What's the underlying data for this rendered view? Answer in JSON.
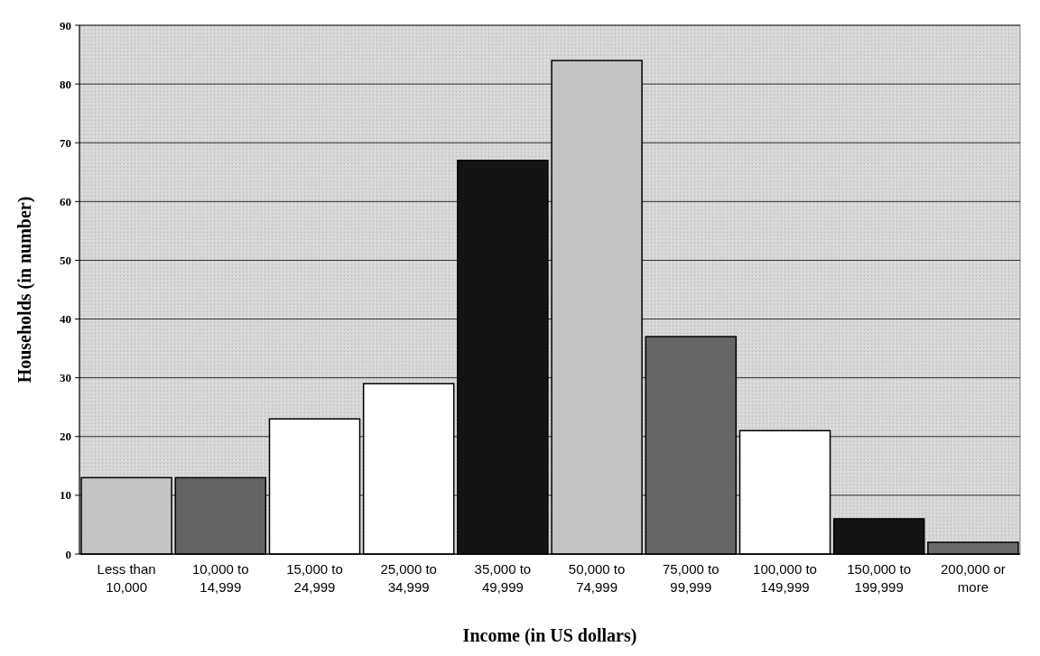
{
  "chart_data": {
    "type": "bar",
    "xlabel": "Income (in US dollars)",
    "ylabel": "Households (in number)",
    "categories": [
      "Less than 10,000",
      "10,000 to 14,999",
      "15,000 to 24,999",
      "25,000 to 34,999",
      "35,000 to 49,999",
      "50,000 to 74,999",
      "75,000 to 99,999",
      "100,000 to 149,999",
      "150,000 to 199,999",
      "200,000 or more"
    ],
    "values": [
      13,
      13,
      23,
      29,
      67,
      84,
      37,
      21,
      6,
      2
    ],
    "colors": [
      "#c4c4c4",
      "#636363",
      "#ffffff",
      "#ffffff",
      "#141414",
      "#c4c4c4",
      "#666666",
      "#ffffff",
      "#141414",
      "#6a6a6a"
    ],
    "ylim": [
      0,
      90
    ],
    "yticks": [
      0,
      10,
      20,
      30,
      40,
      50,
      60,
      70,
      80,
      90
    ],
    "grid": "y"
  }
}
